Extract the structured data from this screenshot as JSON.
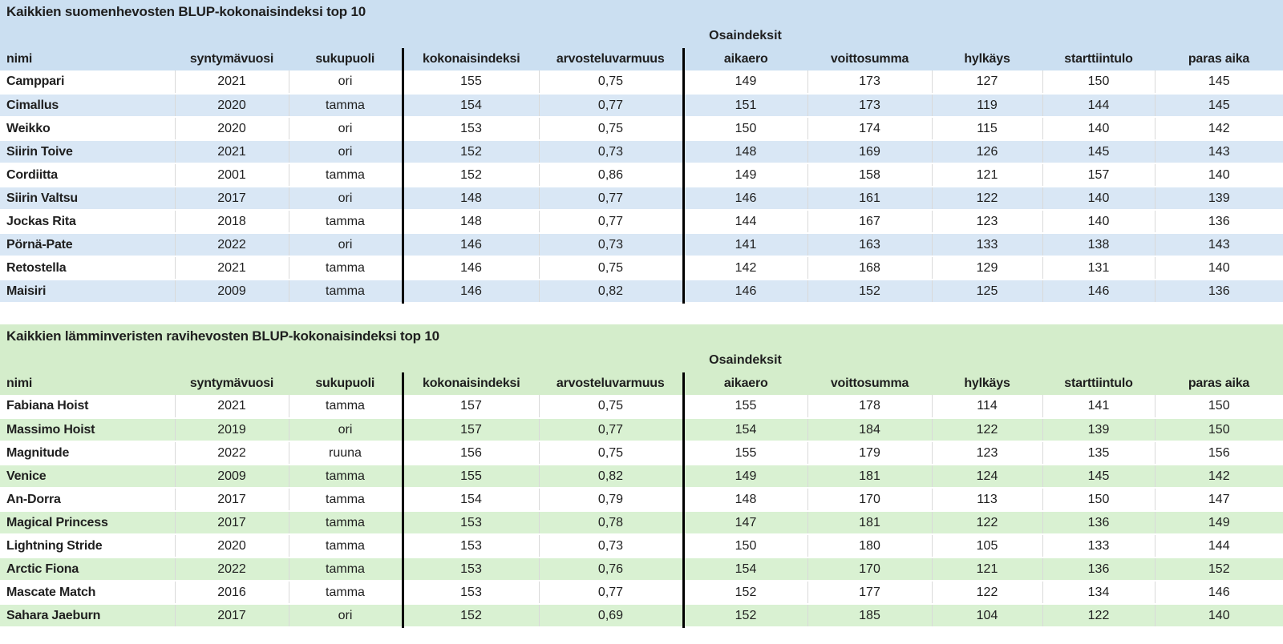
{
  "tables": [
    {
      "title": "Kaikkien suomenhevosten BLUP-kokonaisindeksi top 10",
      "group_header": "Osaindeksit",
      "colors": {
        "header_bg": "#cbdff1",
        "stripe_bg": "#d9e7f5"
      },
      "columns": [
        "nimi",
        "syntymävuosi",
        "sukupuoli",
        "kokonaisindeksi",
        "arvosteluvarmuus",
        "aikaero",
        "voittosumma",
        "hylkäys",
        "starttiintulo",
        "paras aika"
      ],
      "rows": [
        [
          "Camppari",
          "2021",
          "ori",
          "155",
          "0,75",
          "149",
          "173",
          "127",
          "150",
          "145"
        ],
        [
          "Cimallus",
          "2020",
          "tamma",
          "154",
          "0,77",
          "151",
          "173",
          "119",
          "144",
          "145"
        ],
        [
          "Weikko",
          "2020",
          "ori",
          "153",
          "0,75",
          "150",
          "174",
          "115",
          "140",
          "142"
        ],
        [
          "Siirin Toive",
          "2021",
          "ori",
          "152",
          "0,73",
          "148",
          "169",
          "126",
          "145",
          "143"
        ],
        [
          "Cordiitta",
          "2001",
          "tamma",
          "152",
          "0,86",
          "149",
          "158",
          "121",
          "157",
          "140"
        ],
        [
          "Siirin Valtsu",
          "2017",
          "ori",
          "148",
          "0,77",
          "146",
          "161",
          "122",
          "140",
          "139"
        ],
        [
          "Jockas Rita",
          "2018",
          "tamma",
          "148",
          "0,77",
          "144",
          "167",
          "123",
          "140",
          "136"
        ],
        [
          "Pörnä-Pate",
          "2022",
          "ori",
          "146",
          "0,73",
          "141",
          "163",
          "133",
          "138",
          "143"
        ],
        [
          "Retostella",
          "2021",
          "tamma",
          "146",
          "0,75",
          "142",
          "168",
          "129",
          "131",
          "140"
        ],
        [
          "Maisiri",
          "2009",
          "tamma",
          "146",
          "0,82",
          "146",
          "152",
          "125",
          "146",
          "136"
        ]
      ]
    },
    {
      "title": "Kaikkien lämminveristen ravihevosten BLUP-kokonaisindeksi top 10",
      "group_header": "Osaindeksit",
      "colors": {
        "header_bg": "#d4edcb",
        "stripe_bg": "#d9f1d2"
      },
      "columns": [
        "nimi",
        "syntymävuosi",
        "sukupuoli",
        "kokonaisindeksi",
        "arvosteluvarmuus",
        "aikaero",
        "voittosumma",
        "hylkäys",
        "starttiintulo",
        "paras aika"
      ],
      "rows": [
        [
          "Fabiana Hoist",
          "2021",
          "tamma",
          "157",
          "0,75",
          "155",
          "178",
          "114",
          "141",
          "150"
        ],
        [
          "Massimo Hoist",
          "2019",
          "ori",
          "157",
          "0,77",
          "154",
          "184",
          "122",
          "139",
          "150"
        ],
        [
          "Magnitude",
          "2022",
          "ruuna",
          "156",
          "0,75",
          "155",
          "179",
          "123",
          "135",
          "156"
        ],
        [
          "Venice",
          "2009",
          "tamma",
          "155",
          "0,82",
          "149",
          "181",
          "124",
          "145",
          "142"
        ],
        [
          "An-Dorra",
          "2017",
          "tamma",
          "154",
          "0,79",
          "148",
          "170",
          "113",
          "150",
          "147"
        ],
        [
          "Magical Princess",
          "2017",
          "tamma",
          "153",
          "0,78",
          "147",
          "181",
          "122",
          "136",
          "149"
        ],
        [
          "Lightning Stride",
          "2020",
          "tamma",
          "153",
          "0,73",
          "150",
          "180",
          "105",
          "133",
          "144"
        ],
        [
          "Arctic Fiona",
          "2022",
          "tamma",
          "153",
          "0,76",
          "154",
          "170",
          "121",
          "136",
          "152"
        ],
        [
          "Mascate Match",
          "2016",
          "tamma",
          "153",
          "0,77",
          "152",
          "177",
          "122",
          "134",
          "146"
        ],
        [
          "Sahara Jaeburn",
          "2017",
          "ori",
          "152",
          "0,69",
          "152",
          "185",
          "104",
          "122",
          "140"
        ]
      ]
    }
  ],
  "colors": {
    "text": "#1f1f1f",
    "grid_line": "#d9d9d9",
    "divider_black": "#000000",
    "blue_header_bg": "#cbdff1",
    "blue_stripe_bg": "#d9e7f5",
    "green_header_bg": "#d4edcb",
    "green_stripe_bg": "#d9f1d2"
  }
}
